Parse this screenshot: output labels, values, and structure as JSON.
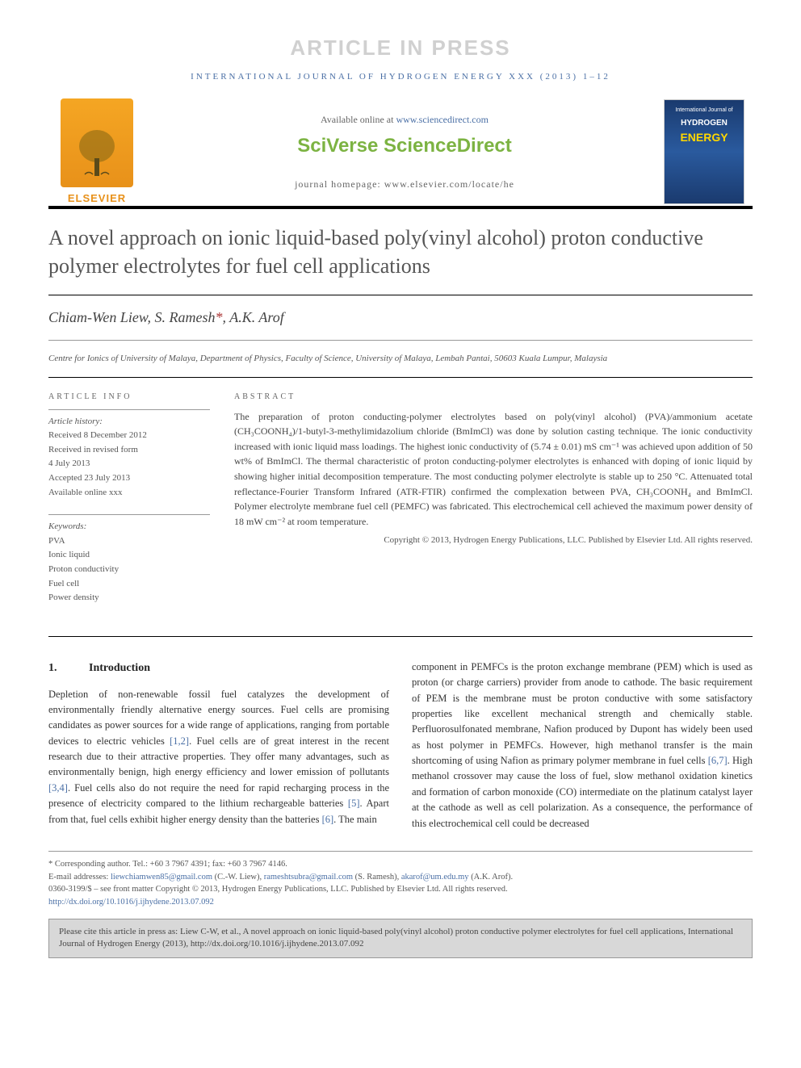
{
  "watermark": "ARTICLE IN PRESS",
  "journal_header": "INTERNATIONAL JOURNAL OF HYDROGEN ENERGY XXX (2013) 1–12",
  "masthead": {
    "elsevier_label": "ELSEVIER",
    "available_prefix": "Available online at ",
    "available_url": "www.sciencedirect.com",
    "sciverse_sci": "SciVerse ",
    "sciverse_direct": "ScienceDirect",
    "homepage": "journal homepage: www.elsevier.com/locate/he",
    "cover_line1": "International Journal of",
    "cover_hydrogen": "HYDROGEN",
    "cover_energy": "ENERGY"
  },
  "title": "A novel approach on ionic liquid-based poly(vinyl alcohol) proton conductive polymer electrolytes for fuel cell applications",
  "authors_html": "Chiam-Wen Liew, S. Ramesh*, A.K. Arof",
  "authors": {
    "a1": "Chiam-Wen Liew",
    "a2": "S. Ramesh",
    "corr": "*",
    "a3": "A.K. Arof"
  },
  "affiliation": "Centre for Ionics of University of Malaya, Department of Physics, Faculty of Science, University of Malaya, Lembah Pantai, 50603 Kuala Lumpur, Malaysia",
  "info": {
    "heading": "ARTICLE INFO",
    "history_label": "Article history:",
    "received": "Received 8 December 2012",
    "revised1": "Received in revised form",
    "revised2": "4 July 2013",
    "accepted": "Accepted 23 July 2013",
    "online": "Available online xxx",
    "keywords_label": "Keywords:",
    "keywords": [
      "PVA",
      "Ionic liquid",
      "Proton conductivity",
      "Fuel cell",
      "Power density"
    ]
  },
  "abstract": {
    "heading": "ABSTRACT",
    "text": "The preparation of proton conducting-polymer electrolytes based on poly(vinyl alcohol) (PVA)/ammonium acetate (CH₃COONH₄)/1-butyl-3-methylimidazolium chloride (BmImCl) was done by solution casting technique. The ionic conductivity increased with ionic liquid mass loadings. The highest ionic conductivity of (5.74 ± 0.01) mS cm⁻¹ was achieved upon addition of 50 wt% of BmImCl. The thermal characteristic of proton conducting-polymer electrolytes is enhanced with doping of ionic liquid by showing higher initial decomposition temperature. The most conducting polymer electrolyte is stable up to 250 °C. Attenuated total reflectance-Fourier Transform Infrared (ATR-FTIR) confirmed the complexation between PVA, CH₃COONH₄ and BmImCl. Polymer electrolyte membrane fuel cell (PEMFC) was fabricated. This electrochemical cell achieved the maximum power density of 18 mW cm⁻² at room temperature.",
    "copyright": "Copyright © 2013, Hydrogen Energy Publications, LLC. Published by Elsevier Ltd. All rights reserved."
  },
  "body": {
    "section_num": "1.",
    "section_title": "Introduction",
    "col1": "Depletion of non-renewable fossil fuel catalyzes the development of environmentally friendly alternative energy sources. Fuel cells are promising candidates as power sources for a wide range of applications, ranging from portable devices to electric vehicles [1,2]. Fuel cells are of great interest in the recent research due to their attractive properties. They offer many advantages, such as environmentally benign, high energy efficiency and lower emission of pollutants [3,4]. Fuel cells also do not require the need for rapid recharging process in the presence of electricity compared to the lithium rechargeable batteries [5]. Apart from that, fuel cells exhibit higher energy density than the batteries [6]. The main",
    "col2": "component in PEMFCs is the proton exchange membrane (PEM) which is used as proton (or charge carriers) provider from anode to cathode. The basic requirement of PEM is the membrane must be proton conductive with some satisfactory properties like excellent mechanical strength and chemically stable. Perfluorosulfonated membrane, Nafion produced by Dupont has widely been used as host polymer in PEMFCs. However, high methanol transfer is the main shortcoming of using Nafion as primary polymer membrane in fuel cells [6,7]. High methanol crossover may cause the loss of fuel, slow methanol oxidation kinetics and formation of carbon monoxide (CO) intermediate on the platinum catalyst layer at the cathode as well as cell polarization. As a consequence, the performance of this electrochemical cell could be decreased"
  },
  "footer": {
    "corr_line": "* Corresponding author. Tel.: +60 3 7967 4391; fax: +60 3 7967 4146.",
    "email_prefix": "E-mail addresses: ",
    "email1": "liewchiamwen85@gmail.com",
    "email1_who": " (C.-W. Liew), ",
    "email2": "rameshtsubra@gmail.com",
    "email2_who": " (S. Ramesh), ",
    "email3": "akarof@um.edu.my",
    "email3_who": " (A.K. Arof).",
    "issn": "0360-3199/$ – see front matter Copyright © 2013, Hydrogen Energy Publications, LLC. Published by Elsevier Ltd. All rights reserved.",
    "doi": "http://dx.doi.org/10.1016/j.ijhydene.2013.07.092"
  },
  "cite_box": "Please cite this article in press as: Liew C-W, et al., A novel approach on ionic liquid-based poly(vinyl alcohol) proton conductive polymer electrolytes for fuel cell applications, International Journal of Hydrogen Energy (2013), http://dx.doi.org/10.1016/j.ijhydene.2013.07.092",
  "colors": {
    "link": "#4a6fa5",
    "elsevier_orange": "#e8911a",
    "sciverse_green": "#7cb342",
    "cover_blue": "#1a3a6e"
  }
}
